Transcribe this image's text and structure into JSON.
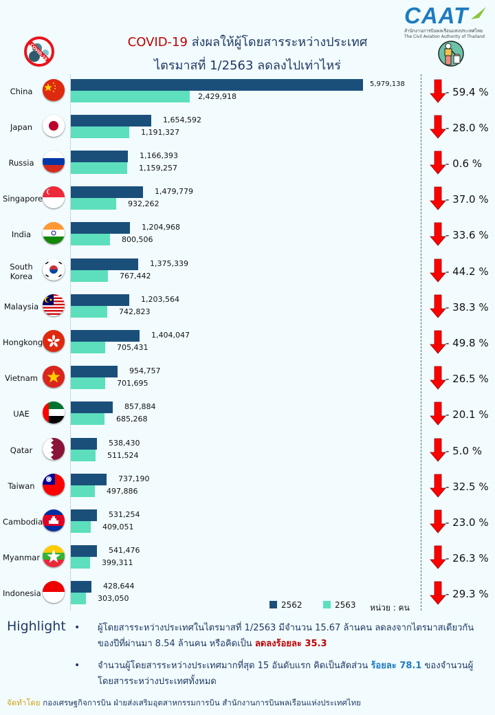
{
  "header": {
    "title_highlight": "COVID-19",
    "title_rest": " ส่งผลให้ผู้โดยสารระหว่างประเทศ",
    "title_line2": "ไตรมาสที่ 1/2563 ลดลงไปเท่าไหร่",
    "logo_text": "CAAT",
    "logo_sub_th": "สำนักงานการบินพลเรือนแห่งประเทศไทย",
    "logo_sub_en": "The Civil Aviation Authority of Thailand",
    "left_icon": "no-covid-icon",
    "right_icon": "traveler-luggage-icon"
  },
  "colors": {
    "series_2562": "#1a4f7a",
    "series_2563": "#5ddfbd",
    "arrow": "#ff0000",
    "title_red": "#c00000",
    "title_blue": "#1f3864"
  },
  "legend": {
    "s1": "2562",
    "s2": "2563",
    "unit": "หน่วย : คน"
  },
  "chart_data": {
    "type": "bar",
    "orientation": "horizontal",
    "title": "COVID-19 ส่งผลให้ผู้โดยสารระหว่างประเทศ ไตรมาสที่ 1/2563 ลดลงไปเท่าไหร่",
    "xlabel": "",
    "ylabel": "",
    "unit": "หน่วย : คน",
    "categories": [
      "China",
      "Japan",
      "Russia",
      "Singapore",
      "India",
      "South Korea",
      "Malaysia",
      "Hongkong",
      "Vietnam",
      "UAE",
      "Qatar",
      "Taiwan",
      "Cambodia",
      "Myanmar",
      "Indonesia"
    ],
    "series": [
      {
        "name": "2562",
        "values": [
          5979138,
          1654592,
          1166393,
          1479779,
          1204968,
          1375339,
          1203564,
          1404047,
          954757,
          857884,
          538430,
          737190,
          531254,
          541476,
          428644
        ]
      },
      {
        "name": "2563",
        "values": [
          2429918,
          1191327,
          1159257,
          932262,
          800506,
          767442,
          742823,
          705431,
          701695,
          685268,
          511524,
          497886,
          409051,
          399311,
          303050
        ]
      }
    ],
    "change_pct": [
      -59.4,
      -28.0,
      -0.6,
      -37.0,
      -33.6,
      -44.2,
      -38.3,
      -49.8,
      -26.5,
      -20.1,
      -5.0,
      -32.5,
      -23.0,
      -26.3,
      -29.3
    ],
    "legend_position": "bottom-right",
    "grid": false
  },
  "rows": [
    {
      "country": "China",
      "flag": "china",
      "v62": "5,979,138",
      "v63": "2,429,918",
      "pct": "- 59.4 %"
    },
    {
      "country": "Japan",
      "flag": "japan",
      "v62": "1,654,592",
      "v63": "1,191,327",
      "pct": "- 28.0 %"
    },
    {
      "country": "Russia",
      "flag": "russia",
      "v62": "1,166,393",
      "v63": "1,159,257",
      "pct": "- 0.6 %"
    },
    {
      "country": "Singapore",
      "flag": "singapore",
      "v62": "1,479,779",
      "v63": "932,262",
      "pct": "- 37.0 %"
    },
    {
      "country": "India",
      "flag": "india",
      "v62": "1,204,968",
      "v63": "800,506",
      "pct": "- 33.6 %"
    },
    {
      "country": "South Korea",
      "flag": "south-korea",
      "v62": "1,375,339",
      "v63": "767,442",
      "pct": "- 44.2 %"
    },
    {
      "country": "Malaysia",
      "flag": "malaysia",
      "v62": "1,203,564",
      "v63": "742,823",
      "pct": "- 38.3 %"
    },
    {
      "country": "Hongkong",
      "flag": "hongkong",
      "v62": "1,404,047",
      "v63": "705,431",
      "pct": "- 49.8 %"
    },
    {
      "country": "Vietnam",
      "flag": "vietnam",
      "v62": "954,757",
      "v63": "701,695",
      "pct": "- 26.5 %"
    },
    {
      "country": "UAE",
      "flag": "uae",
      "v62": "857,884",
      "v63": "685,268",
      "pct": "- 20.1 %"
    },
    {
      "country": "Qatar",
      "flag": "qatar",
      "v62": "538,430",
      "v63": "511,524",
      "pct": "- 5.0 %"
    },
    {
      "country": "Taiwan",
      "flag": "taiwan",
      "v62": "737,190",
      "v63": "497,886",
      "pct": "- 32.5 %"
    },
    {
      "country": "Cambodia",
      "flag": "cambodia",
      "v62": "531,254",
      "v63": "409,051",
      "pct": "- 23.0 %"
    },
    {
      "country": "Myanmar",
      "flag": "myanmar",
      "v62": "541,476",
      "v63": "399,311",
      "pct": "- 26.3 %"
    },
    {
      "country": "Indonesia",
      "flag": "indonesia",
      "v62": "428,644",
      "v63": "303,050",
      "pct": "- 29.3 %"
    }
  ],
  "highlight": {
    "title": "Highlight",
    "bullet": "•",
    "b1_text": "ผู้โดยสารระหว่างประเทศในไตรมาสที่ 1/2563 มีจำนวน 15.67 ล้านคน ลดลงจากไตรมาสเดียวกันของปีที่ผ่านมา 8.54 ล้านคน หรือคิดเป็น ",
    "b1_emph": "ลดลงร้อยละ 35.3",
    "b2_text": "จำนวนผู้โดยสารระหว่างประเทศมากที่สุด 15 อันดับแรก คิดเป็นสัดส่วน ",
    "b2_emph": "ร้อยละ 78.1",
    "b2_text2": " ของจำนวนผู้โดยสารระหว่างประเทศทั้งหมด"
  },
  "footer": {
    "prefix": "จัดทำโดย",
    "text": " กองเศรษฐกิจการบิน ฝ่ายส่งเสริมอุตสาหกรรมการบิน สำนักงานการบินพลเรือนแห่งประเทศไทย"
  }
}
